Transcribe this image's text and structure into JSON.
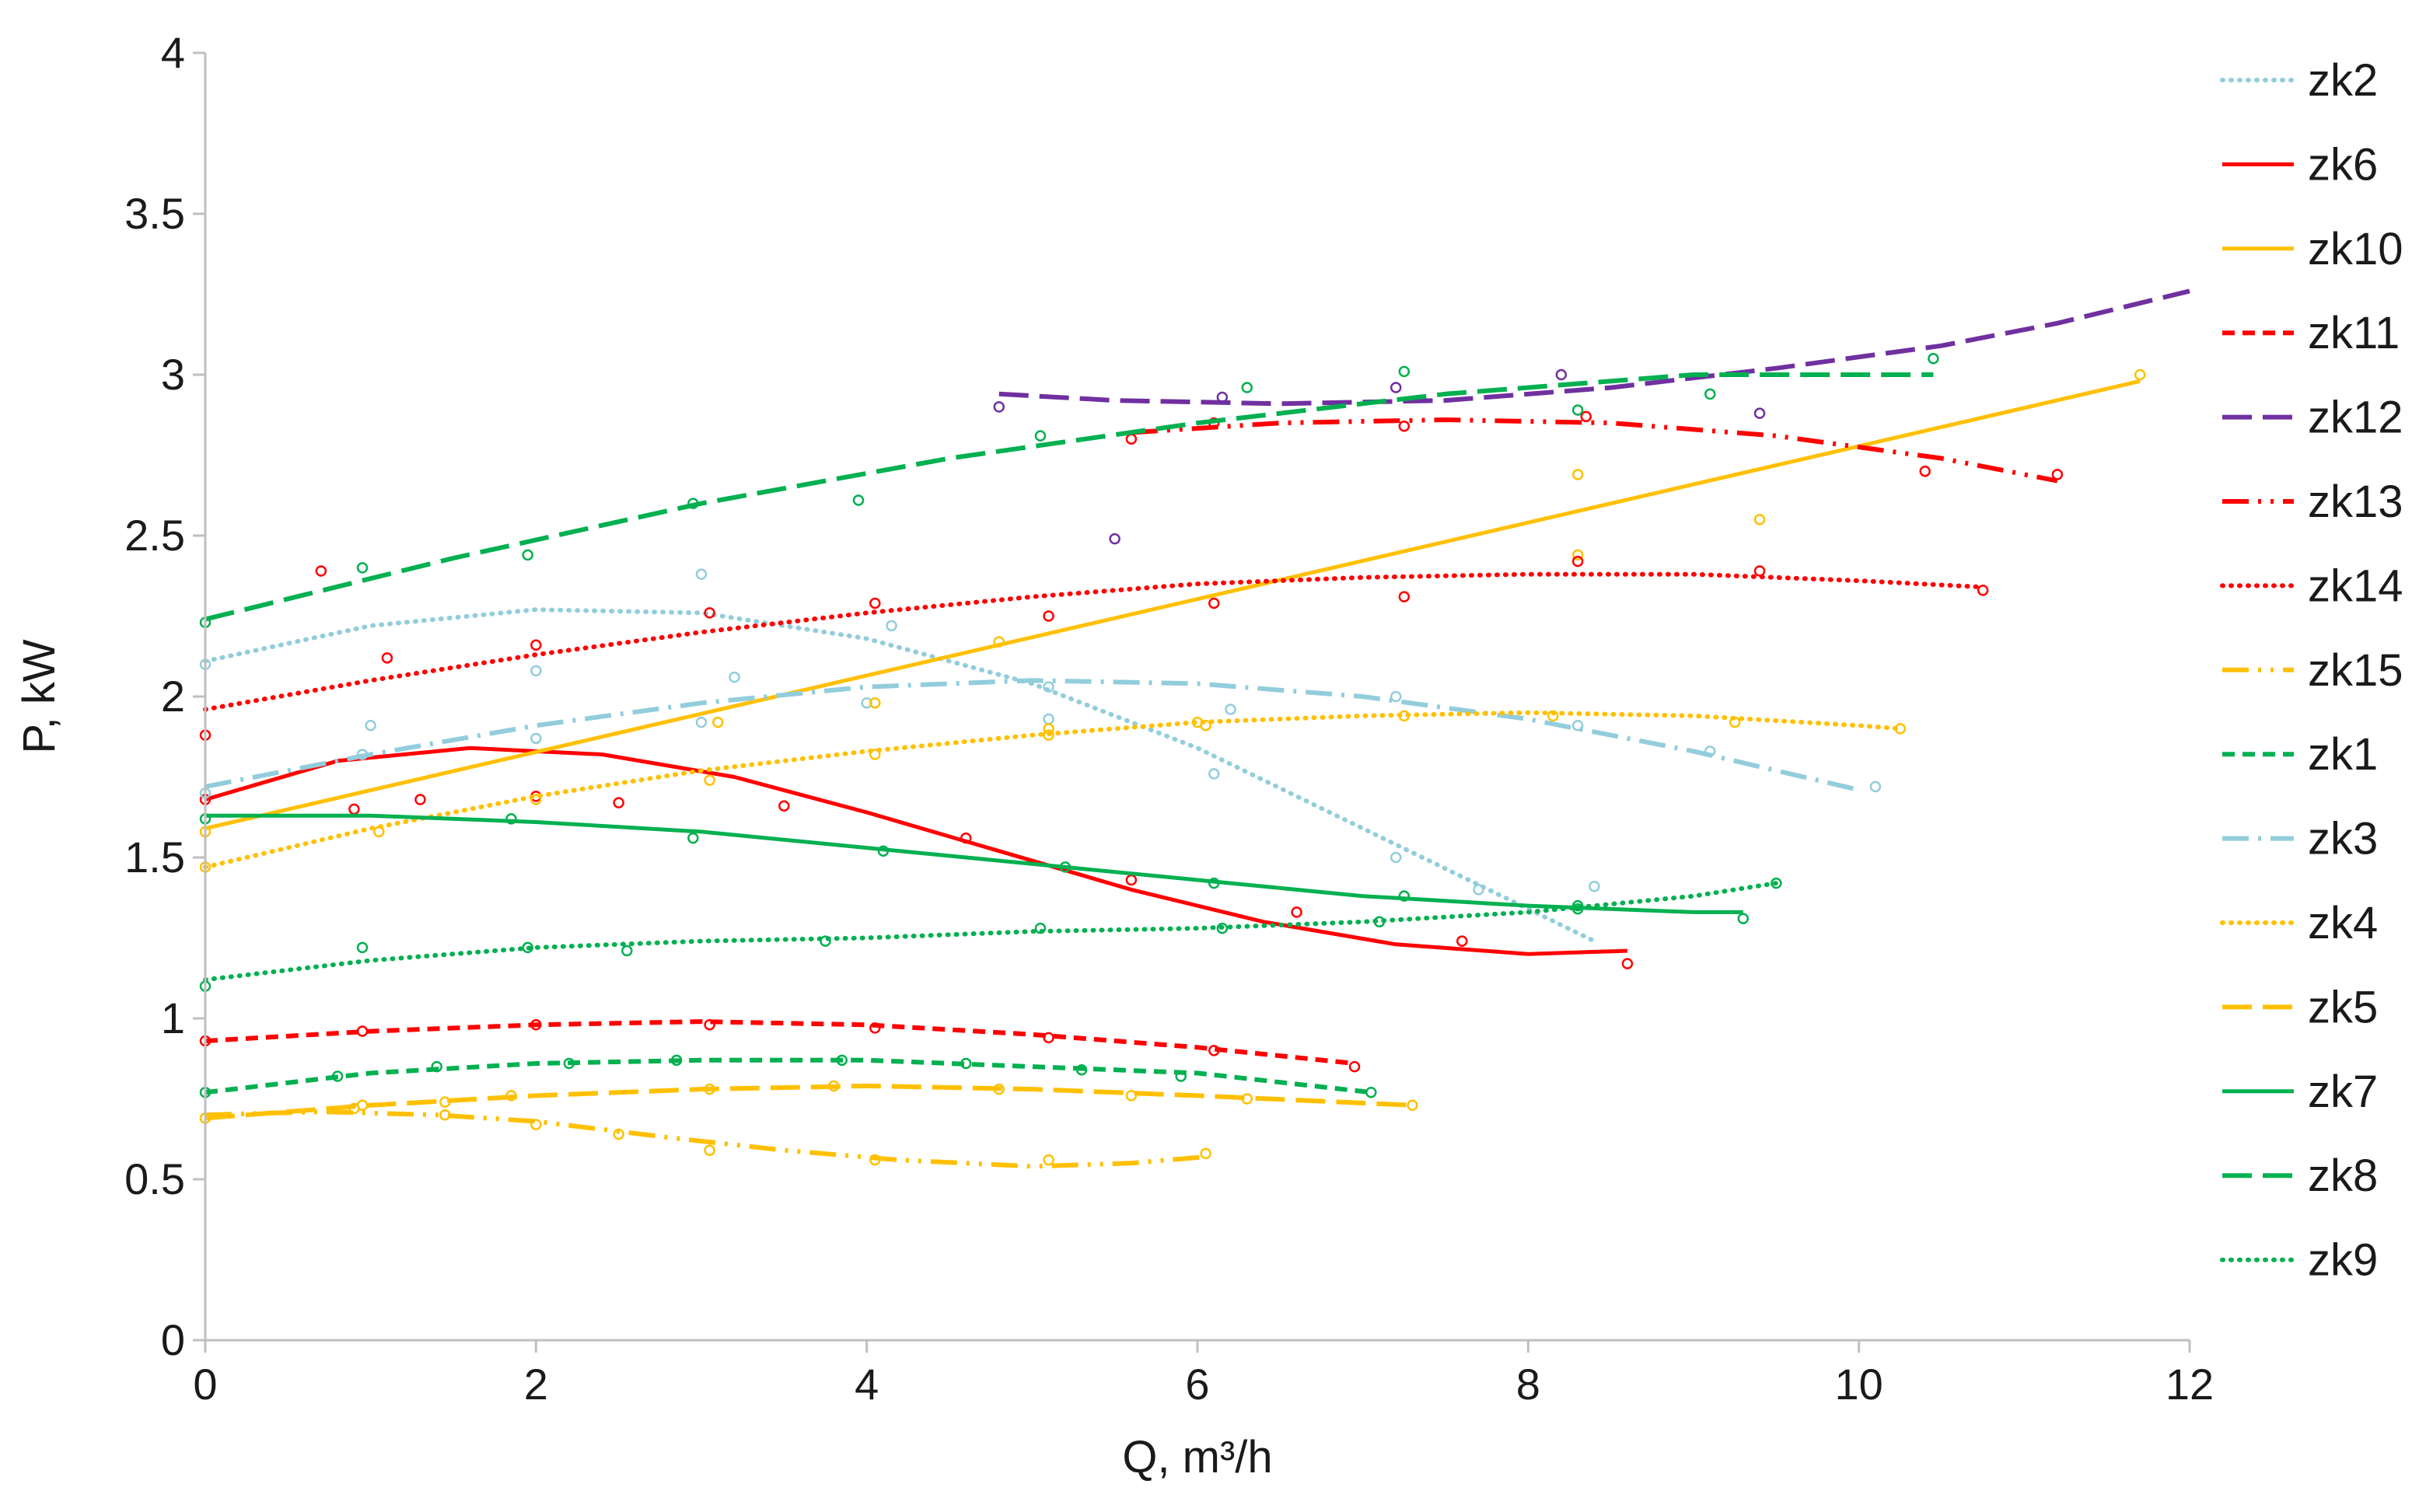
{
  "chart_data": {
    "type": "scatter",
    "title": "",
    "xlabel": "Q, m³/h",
    "ylabel": "P, kW",
    "xlim": [
      0,
      12
    ],
    "ylim": [
      0,
      4
    ],
    "xticks": [
      "0",
      "2",
      "4",
      "6",
      "8",
      "10",
      "12"
    ],
    "yticks": [
      "0",
      "0.5",
      "1",
      "1.5",
      "2",
      "2.5",
      "3",
      "3.5",
      "4"
    ],
    "grid": false,
    "legend_position": "right",
    "series": [
      {
        "name": "zk2",
        "color": "#92cddc",
        "dash": "dot",
        "points": [
          [
            0,
            2.1
          ],
          [
            1,
            1.91
          ],
          [
            2,
            2.08
          ],
          [
            3,
            2.38
          ],
          [
            3.2,
            2.06
          ],
          [
            4.15,
            2.22
          ],
          [
            5.1,
            1.93
          ],
          [
            6.1,
            1.76
          ],
          [
            7.2,
            1.5
          ],
          [
            7.7,
            1.4
          ],
          [
            8.4,
            1.41
          ]
        ],
        "trend": [
          [
            0,
            2.11
          ],
          [
            1,
            2.22
          ],
          [
            2,
            2.27
          ],
          [
            3,
            2.26
          ],
          [
            4,
            2.18
          ],
          [
            5,
            2.04
          ],
          [
            6,
            1.84
          ],
          [
            7,
            1.59
          ],
          [
            8,
            1.34
          ],
          [
            8.4,
            1.24
          ]
        ]
      },
      {
        "name": "zk6",
        "color": "#ff0000",
        "dash": "solid",
        "points": [
          [
            0,
            1.68
          ],
          [
            0.9,
            1.65
          ],
          [
            1.3,
            1.68
          ],
          [
            2,
            1.69
          ],
          [
            2.5,
            1.67
          ],
          [
            3.5,
            1.66
          ],
          [
            4.6,
            1.56
          ],
          [
            5.6,
            1.43
          ],
          [
            6.6,
            1.33
          ],
          [
            7.6,
            1.24
          ],
          [
            8.6,
            1.17
          ]
        ],
        "trend": [
          [
            0,
            1.68
          ],
          [
            0.8,
            1.8
          ],
          [
            1.6,
            1.84
          ],
          [
            2.4,
            1.82
          ],
          [
            3.2,
            1.75
          ],
          [
            4,
            1.64
          ],
          [
            4.8,
            1.52
          ],
          [
            5.6,
            1.4
          ],
          [
            6.4,
            1.3
          ],
          [
            7.2,
            1.23
          ],
          [
            8,
            1.2
          ],
          [
            8.6,
            1.21
          ]
        ]
      },
      {
        "name": "zk10",
        "color": "#ffc000",
        "dash": "solid",
        "points": [
          [
            0,
            1.58
          ],
          [
            5.1,
            1.9
          ],
          [
            6,
            1.92
          ],
          [
            8.3,
            2.44
          ],
          [
            8.3,
            2.69
          ],
          [
            9.4,
            2.55
          ],
          [
            11.7,
            3
          ]
        ],
        "trend": [
          [
            0,
            1.59
          ],
          [
            11.7,
            2.98
          ]
        ]
      },
      {
        "name": "zk11",
        "color": "#ff0000",
        "dash": "short-dash",
        "points": [
          [
            0,
            0.93
          ],
          [
            0.95,
            0.96
          ],
          [
            2,
            0.98
          ],
          [
            3.05,
            0.98
          ],
          [
            4.05,
            0.97
          ],
          [
            5.1,
            0.94
          ],
          [
            6.1,
            0.9
          ],
          [
            6.95,
            0.85
          ]
        ],
        "trend": [
          [
            0,
            0.93
          ],
          [
            1,
            0.96
          ],
          [
            2,
            0.98
          ],
          [
            3,
            0.99
          ],
          [
            4,
            0.98
          ],
          [
            5,
            0.95
          ],
          [
            6,
            0.91
          ],
          [
            6.95,
            0.86
          ]
        ]
      },
      {
        "name": "zk12",
        "color": "#7030a0",
        "dash": "long-dash",
        "points": [
          [
            4.8,
            2.9
          ],
          [
            5.5,
            2.49
          ],
          [
            6.15,
            2.93
          ],
          [
            7.2,
            2.96
          ],
          [
            8.2,
            3
          ],
          [
            9.4,
            2.88
          ]
        ],
        "trend": [
          [
            4.8,
            2.94
          ],
          [
            5.5,
            2.92
          ],
          [
            6.5,
            2.91
          ],
          [
            7.5,
            2.92
          ],
          [
            8.5,
            2.96
          ],
          [
            9.5,
            3.02
          ],
          [
            10.5,
            3.09
          ],
          [
            11.2,
            3.16
          ],
          [
            12,
            3.26
          ]
        ]
      },
      {
        "name": "zk13",
        "color": "#ff0000",
        "dash": "dash-dot-dot",
        "points": [
          [
            5.6,
            2.8
          ],
          [
            6.1,
            2.85
          ],
          [
            7.25,
            2.84
          ],
          [
            8.35,
            2.87
          ],
          [
            10.4,
            2.7
          ],
          [
            11.2,
            2.69
          ]
        ],
        "trend": [
          [
            5.6,
            2.82
          ],
          [
            6.5,
            2.85
          ],
          [
            7.5,
            2.86
          ],
          [
            8.5,
            2.85
          ],
          [
            9.5,
            2.81
          ],
          [
            10.5,
            2.74
          ],
          [
            11.2,
            2.67
          ]
        ]
      },
      {
        "name": "zk14",
        "color": "#ff0000",
        "dash": "dot",
        "points": [
          [
            0,
            1.88
          ],
          [
            0.7,
            2.39
          ],
          [
            1.1,
            2.12
          ],
          [
            2,
            2.16
          ],
          [
            3.05,
            2.26
          ],
          [
            4.05,
            2.29
          ],
          [
            5.1,
            2.25
          ],
          [
            6.1,
            2.29
          ],
          [
            7.25,
            2.31
          ],
          [
            8.3,
            2.42
          ],
          [
            9.4,
            2.39
          ],
          [
            10.75,
            2.33
          ]
        ],
        "trend": [
          [
            0,
            1.96
          ],
          [
            1,
            2.05
          ],
          [
            2,
            2.13
          ],
          [
            3,
            2.2
          ],
          [
            4,
            2.26
          ],
          [
            5,
            2.31
          ],
          [
            6,
            2.35
          ],
          [
            7,
            2.37
          ],
          [
            8,
            2.38
          ],
          [
            9,
            2.38
          ],
          [
            10,
            2.36
          ],
          [
            10.75,
            2.34
          ]
        ]
      },
      {
        "name": "zk15",
        "color": "#ffc000",
        "dash": "dash-dot-dot",
        "points": [
          [
            0,
            0.69
          ],
          [
            0.9,
            0.72
          ],
          [
            1.45,
            0.7
          ],
          [
            2,
            0.67
          ],
          [
            2.5,
            0.64
          ],
          [
            3.05,
            0.59
          ],
          [
            4.05,
            0.56
          ],
          [
            5.1,
            0.56
          ],
          [
            6.05,
            0.58
          ]
        ],
        "trend": [
          [
            0,
            0.7
          ],
          [
            0.7,
            0.71
          ],
          [
            1.4,
            0.7
          ],
          [
            2,
            0.68
          ],
          [
            2.8,
            0.63
          ],
          [
            3.5,
            0.59
          ],
          [
            4.2,
            0.56
          ],
          [
            5,
            0.54
          ],
          [
            5.6,
            0.55
          ],
          [
            6.05,
            0.57
          ]
        ]
      },
      {
        "name": "zk1",
        "color": "#00b050",
        "dash": "short-dash",
        "points": [
          [
            0,
            0.77
          ],
          [
            0.8,
            0.82
          ],
          [
            1.4,
            0.85
          ],
          [
            2.2,
            0.86
          ],
          [
            2.85,
            0.87
          ],
          [
            3.85,
            0.87
          ],
          [
            4.6,
            0.86
          ],
          [
            5.3,
            0.84
          ],
          [
            5.9,
            0.82
          ],
          [
            7.05,
            0.77
          ]
        ],
        "trend": [
          [
            0,
            0.77
          ],
          [
            1,
            0.83
          ],
          [
            2,
            0.86
          ],
          [
            3,
            0.87
          ],
          [
            4,
            0.87
          ],
          [
            5,
            0.85
          ],
          [
            6,
            0.83
          ],
          [
            7.05,
            0.77
          ]
        ]
      },
      {
        "name": "zk3",
        "color": "#92cddc",
        "dash": "dash-dot",
        "points": [
          [
            0,
            1.7
          ],
          [
            0.95,
            1.82
          ],
          [
            2,
            1.87
          ],
          [
            3,
            1.92
          ],
          [
            4,
            1.98
          ],
          [
            5.1,
            2.03
          ],
          [
            6.2,
            1.96
          ],
          [
            7.2,
            2
          ],
          [
            8.3,
            1.91
          ],
          [
            9.1,
            1.83
          ],
          [
            10.1,
            1.72
          ]
        ],
        "trend": [
          [
            0,
            1.72
          ],
          [
            1,
            1.82
          ],
          [
            2,
            1.91
          ],
          [
            3,
            1.98
          ],
          [
            4,
            2.03
          ],
          [
            5,
            2.05
          ],
          [
            6,
            2.04
          ],
          [
            7,
            2
          ],
          [
            8,
            1.93
          ],
          [
            9,
            1.83
          ],
          [
            10,
            1.71
          ]
        ]
      },
      {
        "name": "zk4",
        "color": "#ffc000",
        "dash": "dot",
        "points": [
          [
            0,
            1.47
          ],
          [
            1.05,
            1.58
          ],
          [
            2,
            1.68
          ],
          [
            3.05,
            1.74
          ],
          [
            3.1,
            1.92
          ],
          [
            4.05,
            1.82
          ],
          [
            4.05,
            1.98
          ],
          [
            4.8,
            2.17
          ],
          [
            5.1,
            1.88
          ],
          [
            6.05,
            1.91
          ],
          [
            7.25,
            1.94
          ],
          [
            8.15,
            1.94
          ],
          [
            9.25,
            1.92
          ],
          [
            10.25,
            1.9
          ]
        ],
        "trend": [
          [
            0,
            1.47
          ],
          [
            1,
            1.59
          ],
          [
            2,
            1.69
          ],
          [
            3,
            1.77
          ],
          [
            4,
            1.83
          ],
          [
            5,
            1.88
          ],
          [
            6,
            1.92
          ],
          [
            7,
            1.94
          ],
          [
            8,
            1.95
          ],
          [
            9,
            1.94
          ],
          [
            10,
            1.91
          ],
          [
            10.25,
            1.9
          ]
        ]
      },
      {
        "name": "zk5",
        "color": "#ffc000",
        "dash": "long-dash",
        "points": [
          [
            0,
            0.69
          ],
          [
            0.95,
            0.73
          ],
          [
            1.45,
            0.74
          ],
          [
            1.85,
            0.76
          ],
          [
            3.05,
            0.78
          ],
          [
            3.8,
            0.79
          ],
          [
            4.8,
            0.78
          ],
          [
            5.6,
            0.76
          ],
          [
            6.3,
            0.75
          ],
          [
            7.3,
            0.73
          ]
        ],
        "trend": [
          [
            0,
            0.69
          ],
          [
            1,
            0.73
          ],
          [
            2,
            0.76
          ],
          [
            3,
            0.78
          ],
          [
            4,
            0.79
          ],
          [
            5,
            0.78
          ],
          [
            6,
            0.76
          ],
          [
            7.3,
            0.73
          ]
        ]
      },
      {
        "name": "zk7",
        "color": "#00b050",
        "dash": "solid",
        "points": [
          [
            0,
            1.62
          ],
          [
            1.85,
            1.62
          ],
          [
            2.95,
            1.56
          ],
          [
            4.1,
            1.52
          ],
          [
            5.2,
            1.47
          ],
          [
            6.1,
            1.42
          ],
          [
            7.25,
            1.38
          ],
          [
            8.3,
            1.34
          ],
          [
            9.3,
            1.31
          ]
        ],
        "trend": [
          [
            0,
            1.63
          ],
          [
            1,
            1.63
          ],
          [
            2,
            1.61
          ],
          [
            3,
            1.58
          ],
          [
            4,
            1.53
          ],
          [
            5,
            1.48
          ],
          [
            6,
            1.43
          ],
          [
            7,
            1.38
          ],
          [
            8,
            1.35
          ],
          [
            9,
            1.33
          ],
          [
            9.3,
            1.33
          ]
        ]
      },
      {
        "name": "zk8",
        "color": "#00b050",
        "dash": "long-dash",
        "points": [
          [
            0,
            2.23
          ],
          [
            0.95,
            2.4
          ],
          [
            1.95,
            2.44
          ],
          [
            2.95,
            2.6
          ],
          [
            3.95,
            2.61
          ],
          [
            5.05,
            2.81
          ],
          [
            6.3,
            2.96
          ],
          [
            7.25,
            3.01
          ],
          [
            8.3,
            2.89
          ],
          [
            9.1,
            2.94
          ],
          [
            10.45,
            3.05
          ]
        ],
        "trend": [
          [
            0,
            2.24
          ],
          [
            1.5,
            2.43
          ],
          [
            3,
            2.6
          ],
          [
            4.5,
            2.74
          ],
          [
            6,
            2.85
          ],
          [
            7.5,
            2.94
          ],
          [
            9,
            3
          ],
          [
            10.45,
            3
          ]
        ]
      },
      {
        "name": "zk9",
        "color": "#00b050",
        "dash": "dot",
        "points": [
          [
            0,
            1.1
          ],
          [
            0.95,
            1.22
          ],
          [
            1.95,
            1.22
          ],
          [
            2.55,
            1.21
          ],
          [
            3.75,
            1.24
          ],
          [
            5.05,
            1.28
          ],
          [
            6.15,
            1.28
          ],
          [
            7.1,
            1.3
          ],
          [
            8.3,
            1.35
          ],
          [
            9.5,
            1.42
          ]
        ],
        "trend": [
          [
            0,
            1.12
          ],
          [
            1,
            1.18
          ],
          [
            2,
            1.22
          ],
          [
            3,
            1.24
          ],
          [
            4,
            1.25
          ],
          [
            5,
            1.27
          ],
          [
            6,
            1.28
          ],
          [
            7,
            1.3
          ],
          [
            8,
            1.33
          ],
          [
            9,
            1.38
          ],
          [
            9.5,
            1.42
          ]
        ]
      }
    ]
  }
}
